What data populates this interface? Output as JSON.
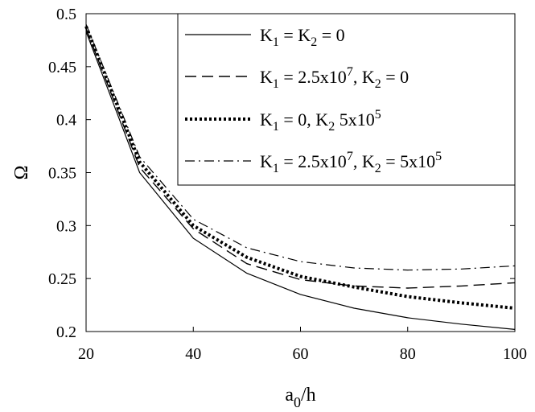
{
  "chart_data": {
    "type": "line",
    "xlabel": {
      "main": "a",
      "sub": "0",
      "tail": "/h"
    },
    "ylabel": "Ω",
    "xlim": [
      20,
      100
    ],
    "ylim": [
      0.2,
      0.5
    ],
    "xticks": [
      "20",
      "40",
      "60",
      "80",
      "100"
    ],
    "yticks": [
      "0.2",
      "0.25",
      "0.3",
      "0.35",
      "0.4",
      "0.45",
      "0.5"
    ],
    "grid": false,
    "legend_position": "top-right",
    "x": [
      20,
      30,
      40,
      50,
      60,
      70,
      80,
      90,
      100
    ],
    "series": [
      {
        "name": "K1 = K2 = 0",
        "style": "solid",
        "label": [
          {
            "t": "K"
          },
          {
            "t": "1",
            "s": "sub"
          },
          {
            "t": " = K"
          },
          {
            "t": "2",
            "s": "sub"
          },
          {
            "t": " = 0"
          }
        ],
        "values": [
          0.483,
          0.35,
          0.288,
          0.255,
          0.235,
          0.222,
          0.213,
          0.207,
          0.202
        ]
      },
      {
        "name": "K1 = 2.5x10^7, K2 = 0",
        "style": "dashed",
        "label": [
          {
            "t": "K"
          },
          {
            "t": "1",
            "s": "sub"
          },
          {
            "t": " = 2.5x10"
          },
          {
            "t": "7",
            "s": "sup"
          },
          {
            "t": ", K"
          },
          {
            "t": "2",
            "s": "sub"
          },
          {
            "t": " = 0"
          }
        ],
        "values": [
          0.486,
          0.355,
          0.297,
          0.264,
          0.249,
          0.243,
          0.241,
          0.243,
          0.246
        ]
      },
      {
        "name": "K1 = 0, K2 5x10^5",
        "style": "dotted",
        "label": [
          {
            "t": "K"
          },
          {
            "t": "1",
            "s": "sub"
          },
          {
            "t": " = 0, K"
          },
          {
            "t": "2",
            "s": "sub"
          },
          {
            "t": " 5x10"
          },
          {
            "t": "5",
            "s": "sup"
          }
        ],
        "values": [
          0.488,
          0.36,
          0.3,
          0.27,
          0.252,
          0.242,
          0.233,
          0.227,
          0.222
        ]
      },
      {
        "name": "K1 = 2.5x10^7, K2 = 5x10^5",
        "style": "dashdot",
        "label": [
          {
            "t": "K"
          },
          {
            "t": "1",
            "s": "sub"
          },
          {
            "t": " = 2.5x10"
          },
          {
            "t": "7",
            "s": "sup"
          },
          {
            "t": ", K"
          },
          {
            "t": "2",
            "s": "sub"
          },
          {
            "t": " = 5x10"
          },
          {
            "t": "5",
            "s": "sup"
          }
        ],
        "values": [
          0.49,
          0.365,
          0.306,
          0.279,
          0.266,
          0.26,
          0.258,
          0.259,
          0.262
        ]
      }
    ]
  }
}
